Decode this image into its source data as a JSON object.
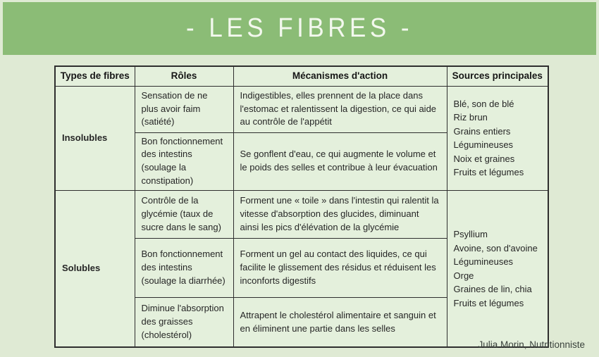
{
  "banner": {
    "title": "- LES FIBRES -"
  },
  "colors": {
    "banner_green": "#8bbc76",
    "page_background": "#dfead4",
    "cell_background": "#e4f0dc",
    "border": "#2e2e2e",
    "title_text": "#f3f8ee"
  },
  "table": {
    "headers": [
      "Types de fibres",
      "Rôles",
      "Mécanismes d'action",
      "Sources principales"
    ],
    "groups": [
      {
        "type": "Insolubles",
        "rows": [
          {
            "role": "Sensation de ne plus avoir faim (satiété)",
            "mechanism": "Indigestibles, elles prennent de la place dans l'estomac et ralentissent la digestion, ce qui aide au contrôle de l'appétit"
          },
          {
            "role": "Bon fonctionnement des intestins (soulage la constipation)",
            "mechanism": "Se gonflent d'eau, ce qui augmente le volume et le poids des selles et contribue à leur évacuation"
          }
        ],
        "sources": [
          "Blé, son de blé",
          "Riz brun",
          "Grains entiers",
          "Légumineuses",
          "Noix et graines",
          "Fruits et légumes"
        ]
      },
      {
        "type": "Solubles",
        "rows": [
          {
            "role": "Contrôle de la glycémie (taux de sucre dans le sang)",
            "mechanism": "Forment une « toile » dans l'intestin qui ralentit la vitesse d'absorption des glucides, diminuant ainsi les pics d'élévation de la glycémie"
          },
          {
            "role": "Bon fonctionnement des intestins (soulage la diarrhée)",
            "mechanism": "Forment un gel au contact des liquides, ce qui facilite le glissement des résidus et réduisent les inconforts digestifs"
          },
          {
            "role": "Diminue l'absorption des graisses (cholestérol)",
            "mechanism": "Attrapent le cholestérol alimentaire et sanguin et en éliminent une partie dans les selles"
          }
        ],
        "sources": [
          "Psyllium",
          "Avoine, son d'avoine",
          "Légumineuses",
          "Orge",
          "Graines de lin, chia",
          "Fruits et légumes"
        ]
      }
    ]
  },
  "footer": {
    "credit": "Julia Morin, Nutritionniste"
  }
}
